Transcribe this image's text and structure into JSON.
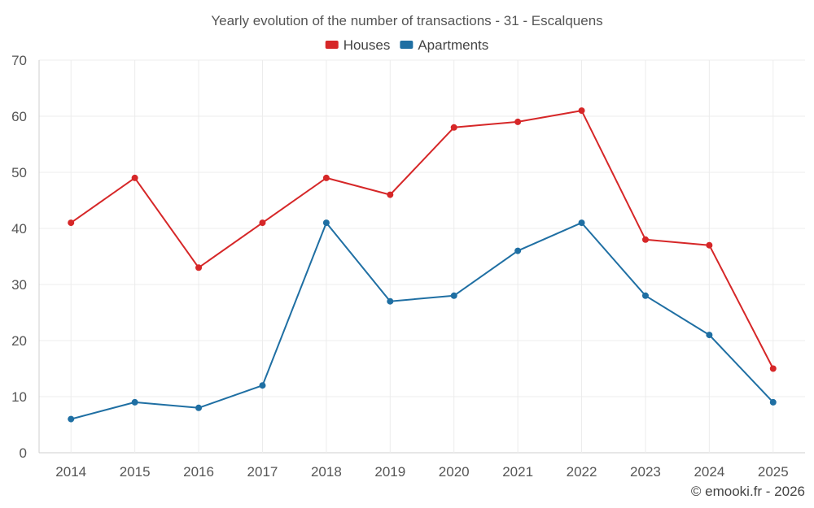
{
  "chart_data": {
    "type": "line",
    "title": "Yearly evolution of the number of transactions - 31 - Escalquens",
    "categories": [
      "2014",
      "2015",
      "2016",
      "2017",
      "2018",
      "2019",
      "2020",
      "2021",
      "2022",
      "2023",
      "2024",
      "2025"
    ],
    "series": [
      {
        "name": "Houses",
        "color": "#d62728",
        "values": [
          41,
          49,
          33,
          41,
          49,
          46,
          58,
          59,
          61,
          38,
          37,
          15
        ]
      },
      {
        "name": "Apartments",
        "color": "#1f6fa3",
        "values": [
          6,
          9,
          8,
          12,
          41,
          27,
          28,
          36,
          41,
          28,
          21,
          9
        ]
      }
    ],
    "ylim": [
      0,
      70
    ],
    "yticks": [
      0,
      10,
      20,
      30,
      40,
      50,
      60,
      70
    ],
    "xlabel": "",
    "ylabel": "",
    "grid": true,
    "legend_position": "top-center"
  },
  "credit": "© emooki.fr - 2026"
}
